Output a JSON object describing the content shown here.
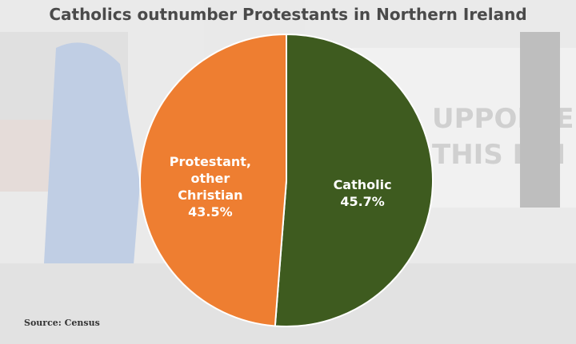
{
  "chart_data": {
    "type": "pie",
    "title": "Catholics outnumber Protestants in Northern Ireland",
    "source": "Source: Census",
    "categories": [
      "Catholic",
      "Protestant, other Christian"
    ],
    "values": [
      45.7,
      43.5
    ],
    "value_labels": [
      "45.7%",
      "43.5%"
    ],
    "colors": [
      "#3e5b1f",
      "#ee7e31"
    ]
  }
}
